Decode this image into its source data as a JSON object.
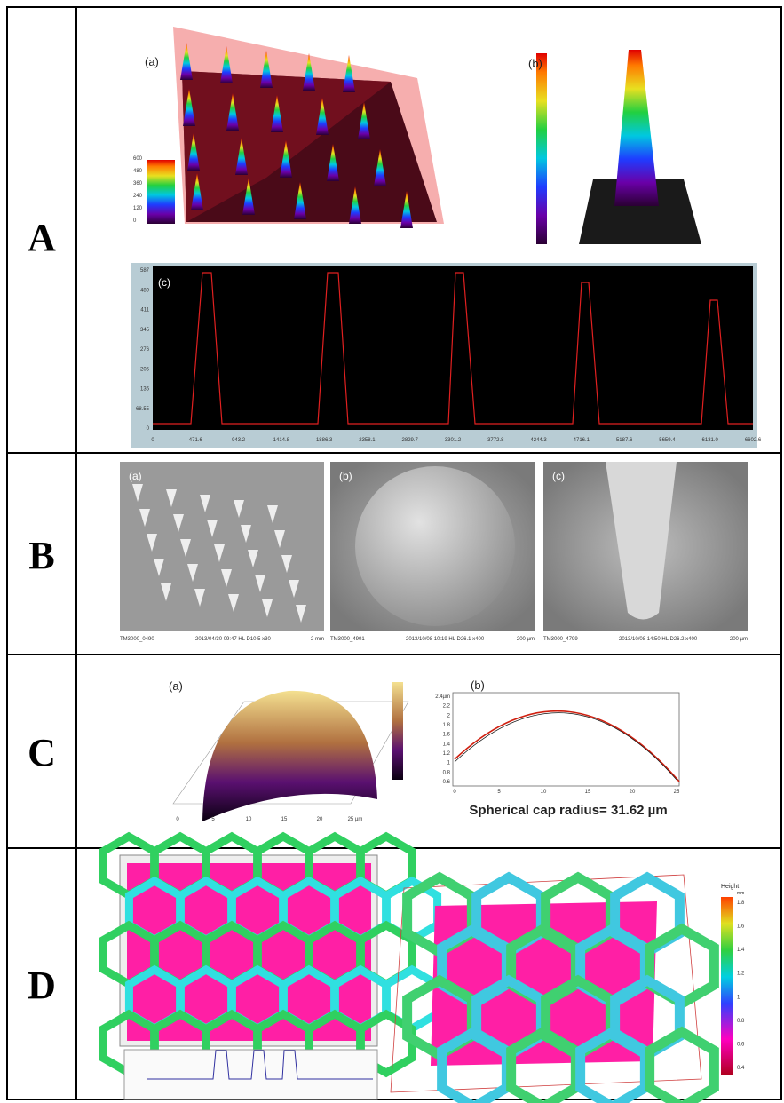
{
  "row_labels": [
    "A",
    "B",
    "C",
    "D"
  ],
  "panel_a": {
    "a_label": "(a)",
    "a_scale": [
      "600",
      "480",
      "360",
      "240",
      "120",
      "0"
    ],
    "b_label": "(b)",
    "c_label": "(c)",
    "c_yticks": [
      "587",
      "489",
      "411",
      "345",
      "276",
      "205",
      "136",
      "68.55",
      "0"
    ],
    "c_xticks": [
      "0",
      "471.6",
      "943.2",
      "1414.8",
      "1886.3",
      "2358.1",
      "2829.7",
      "3301.2",
      "3772.8",
      "4244.3",
      "4716.1",
      "5187.6",
      "5659.4",
      "6131.0",
      "6602.6"
    ]
  },
  "panel_b": {
    "images": [
      {
        "label": "(a)",
        "id": "TM3000_0490",
        "info": "2013/04/30  09:47 HL  D10.5 x30",
        "scale": "2 mm"
      },
      {
        "label": "(b)",
        "id": "TM3000_4901",
        "info": "2013/10/08  10:19 HL  D26.1 x400",
        "scale": "200 µm"
      },
      {
        "label": "(c)",
        "id": "TM3000_4799",
        "info": "2013/10/08  14:50 HL  D26.2 x400",
        "scale": "200 µm"
      }
    ]
  },
  "panel_c": {
    "a_label": "(a)",
    "a_xticks": [
      "0",
      "5",
      "10",
      "15",
      "20",
      "25 µm"
    ],
    "b_label": "(b)",
    "b_xticks": [
      "0",
      "5",
      "10",
      "15",
      "20",
      "25"
    ],
    "b_yticks": [
      "2.4µm",
      "2.2",
      "2",
      "1.8",
      "1.6",
      "1.4",
      "1.2",
      "1",
      "0.8",
      "0.6"
    ],
    "caption": "Spherical cap radius= 31.62 µm"
  },
  "panel_d": {
    "legend_title": "Height",
    "legend_unit": "mm",
    "legend_ticks": [
      "1.8",
      "1.6",
      "1.4",
      "1.2",
      "1",
      "0.8",
      "0.6",
      "0.4"
    ]
  }
}
